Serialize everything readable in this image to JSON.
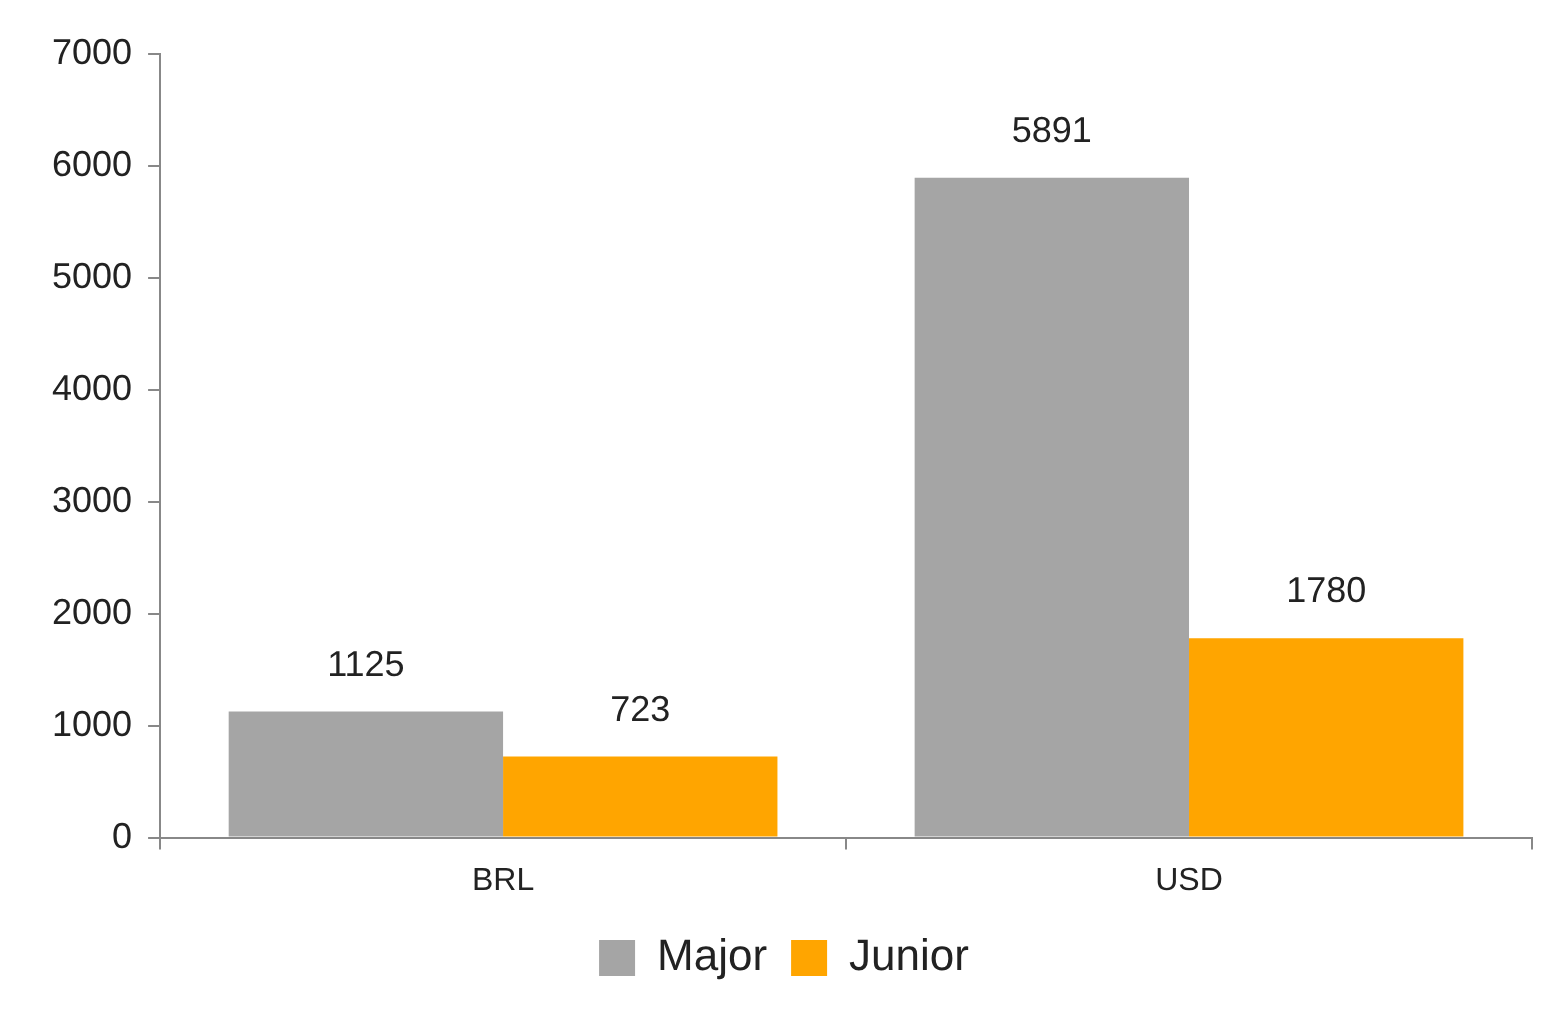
{
  "chart_data": {
    "type": "bar",
    "categories": [
      "BRL",
      "USD"
    ],
    "series": [
      {
        "name": "Major",
        "color": "#a5a5a5",
        "values": [
          1125,
          5891
        ]
      },
      {
        "name": "Junior",
        "color": "#ffa500",
        "values": [
          723,
          1780
        ]
      }
    ],
    "ylim": [
      0,
      7000
    ],
    "yticks": [
      0,
      1000,
      2000,
      3000,
      4000,
      5000,
      6000,
      7000
    ],
    "grid": false,
    "legend": "bottom",
    "data_labels": true
  }
}
